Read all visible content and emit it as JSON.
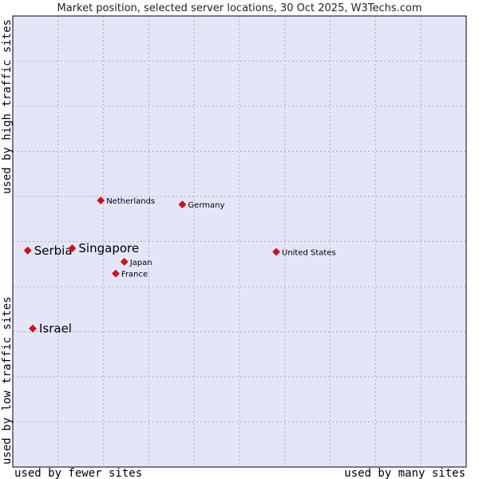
{
  "chart_data": {
    "type": "scatter",
    "title": "Market position, selected server locations, 30 Oct 2025, W3Techs.com",
    "xlabel_left": "used by fewer sites",
    "xlabel_right": "used by many sites",
    "ylabel_bottom": "used by low traffic sites",
    "ylabel_top": "used by high traffic sites",
    "xlim": [
      0,
      10
    ],
    "ylim": [
      0,
      10
    ],
    "grid": true,
    "colors": {
      "plot_background": "#e4e6f8",
      "grid": "#aaaacc",
      "border": "#000000",
      "marker": "#ff0000",
      "marker_edge": "#990000"
    },
    "points": [
      {
        "name": "Netherlands",
        "x": 1.94,
        "y": 5.91,
        "label_size": "small"
      },
      {
        "name": "Germany",
        "x": 3.74,
        "y": 5.82,
        "label_size": "small"
      },
      {
        "name": "Serbia",
        "x": 0.33,
        "y": 4.8,
        "label_size": "large"
      },
      {
        "name": "Singapore",
        "x": 1.31,
        "y": 4.85,
        "label_size": "large"
      },
      {
        "name": "Japan",
        "x": 2.46,
        "y": 4.55,
        "label_size": "small"
      },
      {
        "name": "France",
        "x": 2.27,
        "y": 4.29,
        "label_size": "small"
      },
      {
        "name": "United States",
        "x": 5.81,
        "y": 4.77,
        "label_size": "small"
      },
      {
        "name": "Israel",
        "x": 0.44,
        "y": 3.07,
        "label_size": "large"
      }
    ]
  }
}
